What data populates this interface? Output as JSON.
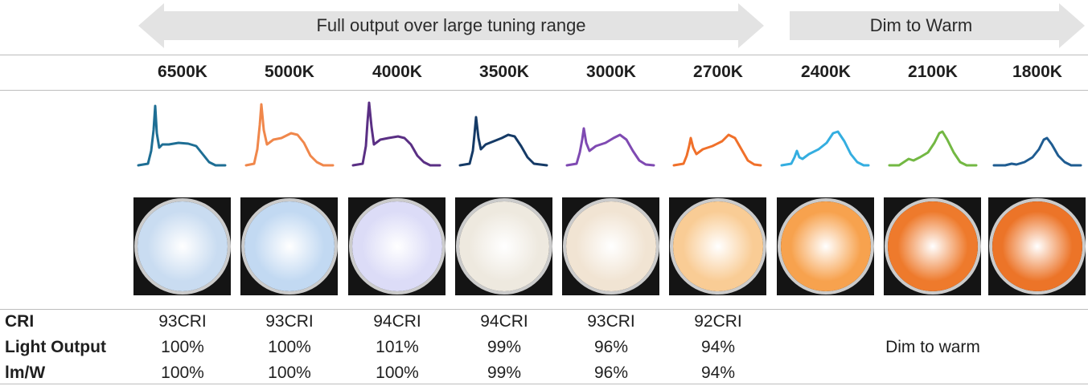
{
  "banners": {
    "full_output": "Full output over large tuning range",
    "dim_to_warm": "Dim to Warm"
  },
  "columns": [
    {
      "cct": "6500K",
      "cri": "93CRI",
      "light_output": "100%",
      "lmw": "100%",
      "curve_color": "#1e6e94",
      "disc_color": "#c9dcf1"
    },
    {
      "cct": "5000K",
      "cri": "93CRI",
      "light_output": "100%",
      "lmw": "100%",
      "curve_color": "#f0874b",
      "disc_color": "#c2d9f2"
    },
    {
      "cct": "4000K",
      "cri": "94CRI",
      "light_output": "101%",
      "lmw": "100%",
      "curve_color": "#5a2f84",
      "disc_color": "#dcdcf7"
    },
    {
      "cct": "3500K",
      "cri": "94CRI",
      "light_output": "99%",
      "lmw": "99%",
      "curve_color": "#153a66",
      "disc_color": "#eee9df"
    },
    {
      "cct": "3000K",
      "cri": "93CRI",
      "light_output": "96%",
      "lmw": "96%",
      "curve_color": "#7f4ab2",
      "disc_color": "#f1e4d3"
    },
    {
      "cct": "2700K",
      "cri": "92CRI",
      "light_output": "94%",
      "lmw": "94%",
      "curve_color": "#f0702a",
      "disc_color": "#f9cc95"
    },
    {
      "cct": "2400K",
      "cri": "",
      "light_output": "",
      "lmw": "",
      "curve_color": "#34aee0",
      "disc_color": "#f7a24e"
    },
    {
      "cct": "2100K",
      "cri": "",
      "light_output": "",
      "lmw": "",
      "curve_color": "#73b843",
      "disc_color": "#ee7a2c"
    },
    {
      "cct": "1800K",
      "cri": "",
      "light_output": "",
      "lmw": "",
      "curve_color": "#1f5c91",
      "disc_color": "#ec7428"
    }
  ],
  "rows": {
    "cri_label": "CRI",
    "light_output_label": "Light Output",
    "lmw_label": "lm/W",
    "dim_note": "Dim to warm"
  }
}
